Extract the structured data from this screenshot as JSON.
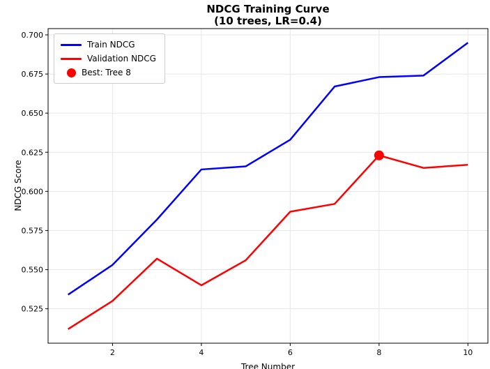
{
  "title": {
    "line1": "NDCG Training Curve",
    "line2": "(10 trees, LR=0.4)"
  },
  "axes": {
    "xlabel": "Tree Number",
    "ylabel": "NDCG Score"
  },
  "legend": {
    "position": "upper left",
    "items": [
      {
        "label": "Train NDCG",
        "color": "#0000ff",
        "sample": "line"
      },
      {
        "label": "Validation NDCG",
        "color": "#ff0000",
        "sample": "line"
      },
      {
        "label": "Best: Tree 8",
        "color": "#ff0000",
        "sample": "dot"
      }
    ]
  },
  "colors": {
    "train": "#0000ff",
    "validation": "#ff0000",
    "grid": "#e7e7e7",
    "axis": "#000000",
    "background": "#ffffff"
  },
  "chart_data": {
    "type": "line",
    "title": "NDCG Training Curve (10 trees, LR=0.4)",
    "xlabel": "Tree Number",
    "ylabel": "NDCG Score",
    "x": [
      1,
      2,
      3,
      4,
      5,
      6,
      7,
      8,
      9,
      10
    ],
    "series": [
      {
        "name": "Train NDCG",
        "color": "#0000ff",
        "values": [
          0.534,
          0.553,
          0.582,
          0.614,
          0.616,
          0.633,
          0.667,
          0.673,
          0.674,
          0.695
        ]
      },
      {
        "name": "Validation NDCG",
        "color": "#ff0000",
        "values": [
          0.512,
          0.53,
          0.557,
          0.54,
          0.556,
          0.587,
          0.592,
          0.623,
          0.615,
          0.617
        ]
      }
    ],
    "best_point": {
      "x": 8,
      "y": 0.623,
      "label": "Best: Tree 8",
      "color": "#ff0000",
      "marker_radius": 7
    },
    "xlim": [
      0.55,
      10.45
    ],
    "ylim": [
      0.503,
      0.704
    ],
    "xticks": [
      2,
      4,
      6,
      8,
      10
    ],
    "yticks": [
      0.525,
      0.55,
      0.575,
      0.6,
      0.625,
      0.65,
      0.675,
      0.7
    ],
    "ytick_decimals": 3,
    "grid": true,
    "legend_position": "upper left",
    "line_width": 2.5
  }
}
